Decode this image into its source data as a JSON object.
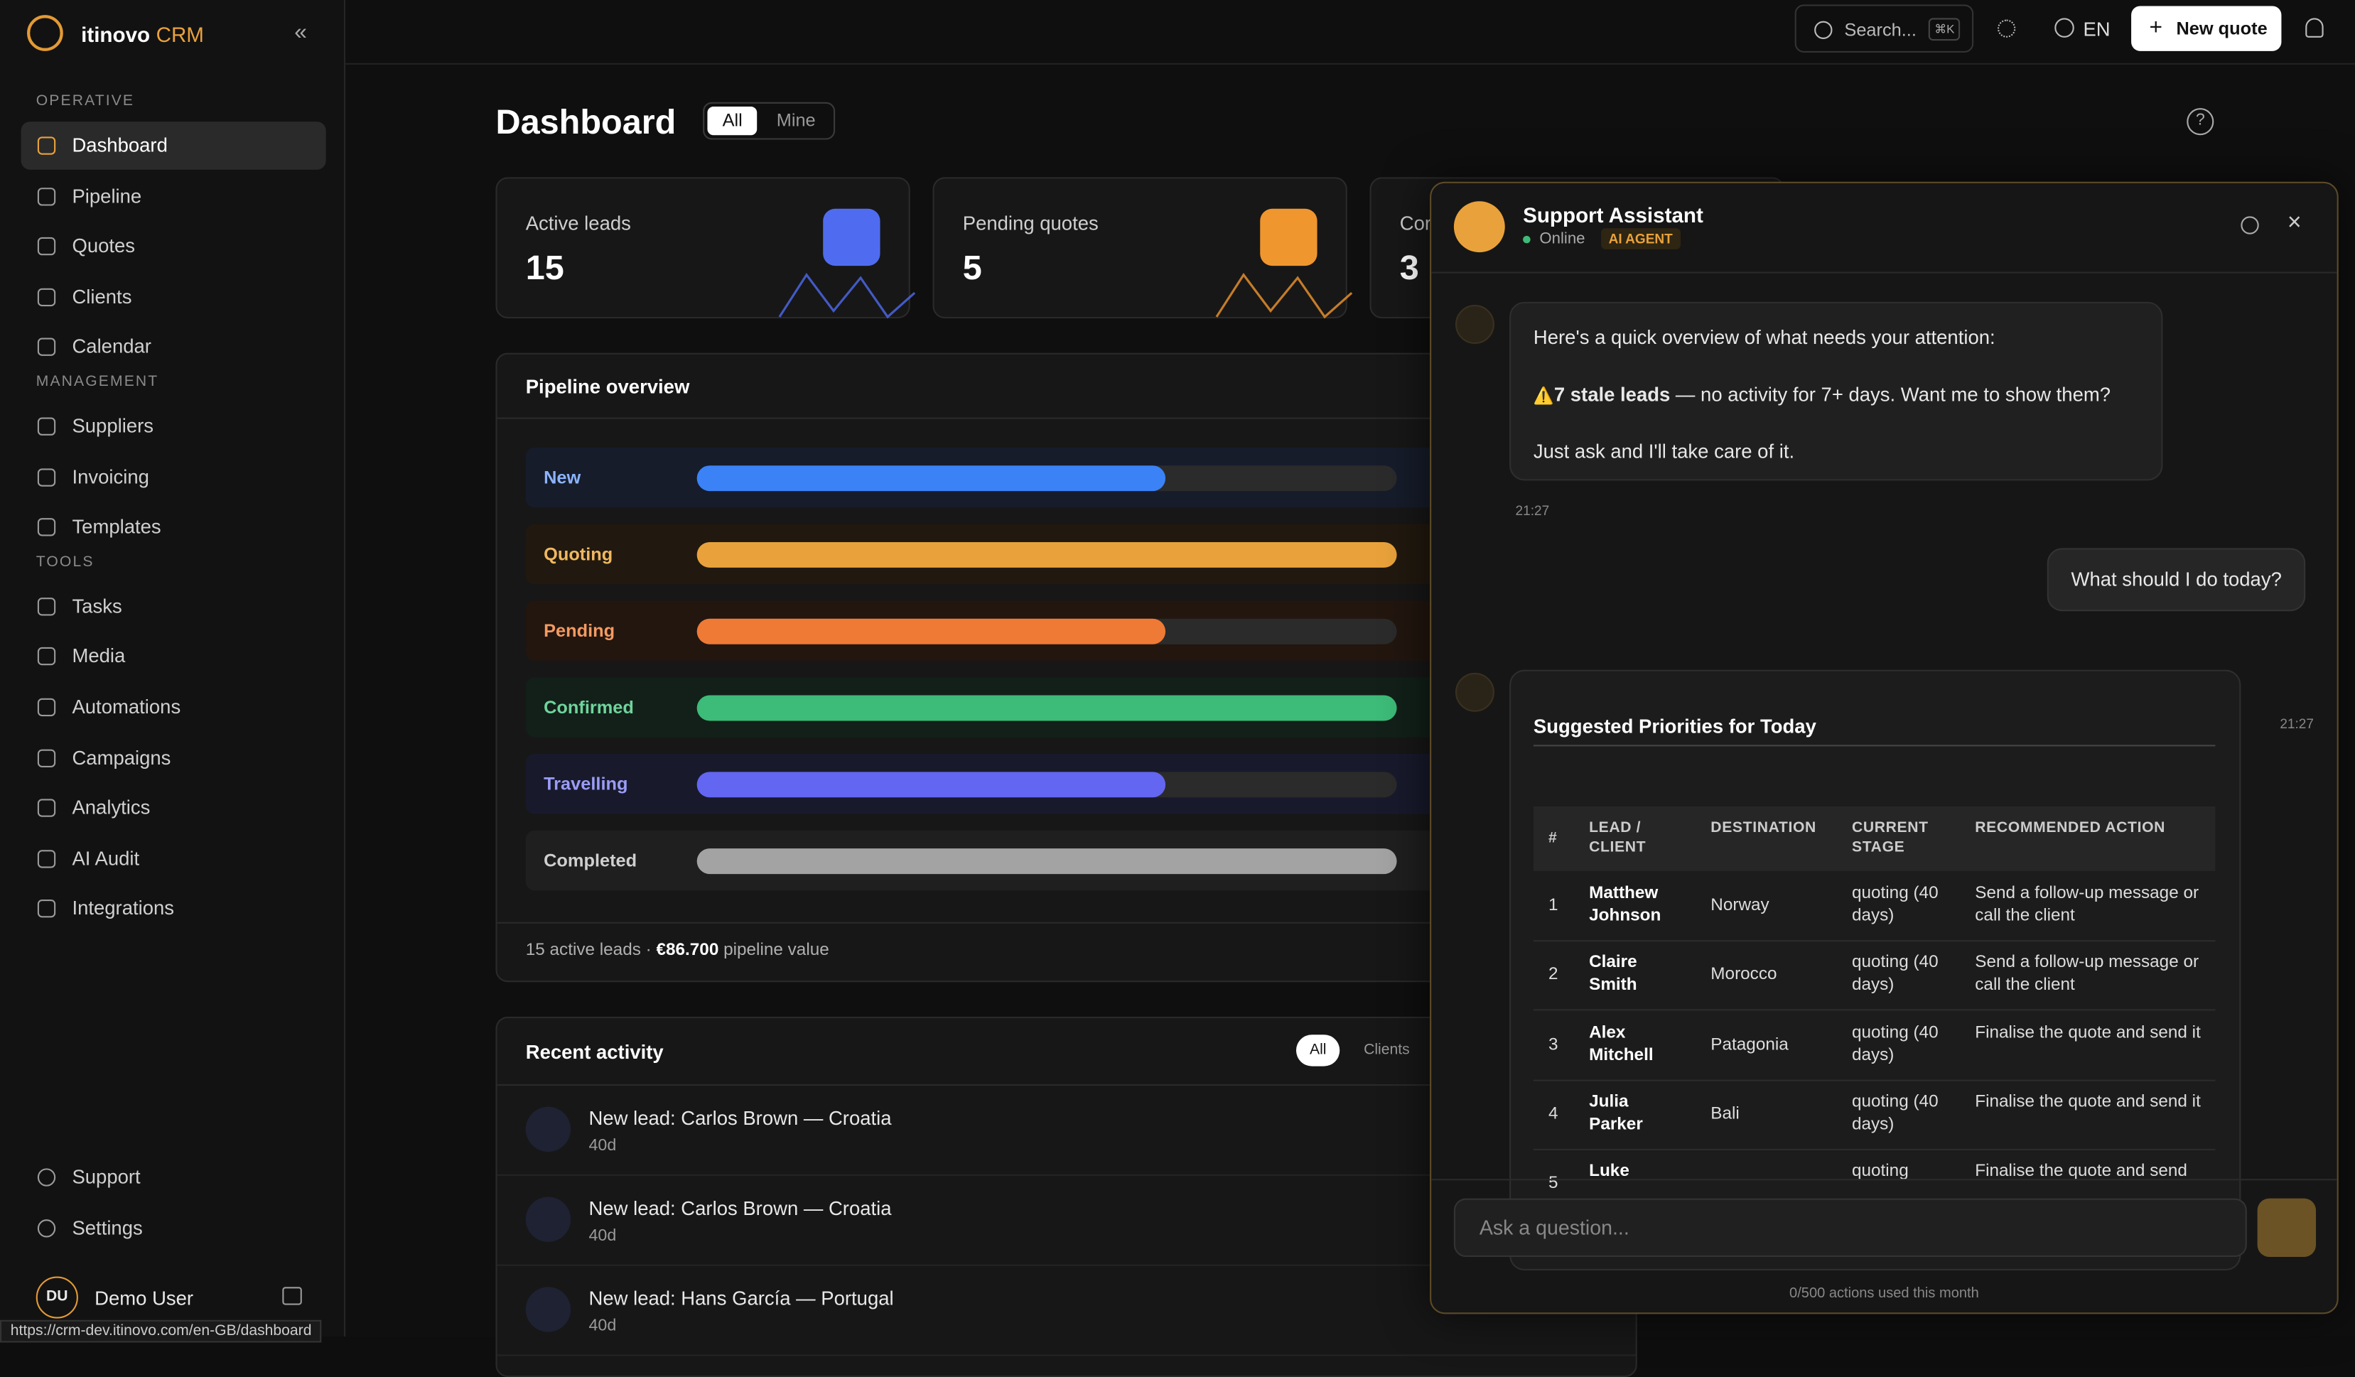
{
  "browser": {
    "status_url": "https://crm-dev.itinovo.com/en-GB/dashboard"
  },
  "sidebar": {
    "brand": "itinovo",
    "brand_accent": "CRM",
    "sections": [
      {
        "title": "OPERATIVE",
        "items": [
          "Dashboard",
          "Pipeline",
          "Quotes",
          "Clients",
          "Calendar"
        ]
      },
      {
        "title": "MANAGEMENT",
        "items": [
          "Suppliers",
          "Invoicing",
          "Templates"
        ]
      },
      {
        "title": "TOOLS",
        "items": [
          "Tasks",
          "Media",
          "Automations",
          "Campaigns",
          "Analytics",
          "AI Audit",
          "Integrations"
        ]
      }
    ],
    "footer_items": [
      "Support",
      "Settings"
    ],
    "user": {
      "initials": "DU",
      "name": "Demo User"
    }
  },
  "topbar": {
    "search": "Search...",
    "shortcut": "⌘K",
    "language": "EN",
    "new_quote": "New quote"
  },
  "header": {
    "title": "Dashboard",
    "filters": [
      "All",
      "Mine"
    ]
  },
  "stats": [
    {
      "label": "Active leads",
      "value": 15
    },
    {
      "label": "Pending quotes",
      "value": 5
    },
    {
      "label": "Cor",
      "value": 3
    }
  ],
  "pipeline": {
    "title": "Pipeline overview",
    "stages": [
      {
        "name": "New",
        "fill": 67
      },
      {
        "name": "Quoting",
        "fill": 100
      },
      {
        "name": "Pending",
        "fill": 67
      },
      {
        "name": "Confirmed",
        "fill": 100
      },
      {
        "name": "Travelling",
        "fill": 67
      },
      {
        "name": "Completed",
        "fill": 100
      }
    ],
    "footer_count": "15 active leads · ",
    "footer_value": "€86.700",
    "footer_suffix": " pipeline value"
  },
  "activity": {
    "title": "Recent activity",
    "filters": [
      "All",
      "Clients"
    ],
    "items": [
      {
        "text": "New lead: Carlos Brown — Croatia",
        "age": "40d"
      },
      {
        "text": "New lead: Carlos Brown — Croatia",
        "age": "40d"
      },
      {
        "text": "New lead: Hans García — Portugal",
        "age": "40d"
      }
    ]
  },
  "assistant": {
    "title": "Support Assistant",
    "status": "Online",
    "badge": "AI AGENT",
    "bot_message": {
      "intro": "Here's a quick overview of what needs your attention:",
      "warning_icon": "⚠️",
      "warning_bold": "7 stale leads",
      "warning_rest": " — no activity for 7+ days. Want me to show them?",
      "closing": "Just ask and I'll take care of it.",
      "time": "21:27"
    },
    "user_message": {
      "text": "What should I do today?",
      "time": "21:27"
    },
    "table": {
      "title": "Suggested Priorities for Today",
      "headers": [
        "#",
        "LEAD / CLIENT",
        "DESTINATION",
        "CURRENT STAGE",
        "RECOMMENDED ACTION"
      ],
      "rows": [
        [
          "1",
          "Matthew Johnson",
          "Norway",
          "quoting (40 days)",
          "Send a follow-up message or call the client"
        ],
        [
          "2",
          "Claire Smith",
          "Morocco",
          "quoting (40 days)",
          "Send a follow-up message or call the client"
        ],
        [
          "3",
          "Alex Mitchell",
          "Patagonia",
          "quoting (40 days)",
          "Finalise the quote and send it"
        ],
        [
          "4",
          "Julia Parker",
          "Bali",
          "quoting (40 days)",
          "Finalise the quote and send it"
        ],
        [
          "5",
          "Luke",
          null,
          "quoting",
          "Finalise the quote and send"
        ]
      ]
    },
    "input_placeholder": "Ask a question...",
    "usage": "0/500 actions used this month"
  }
}
